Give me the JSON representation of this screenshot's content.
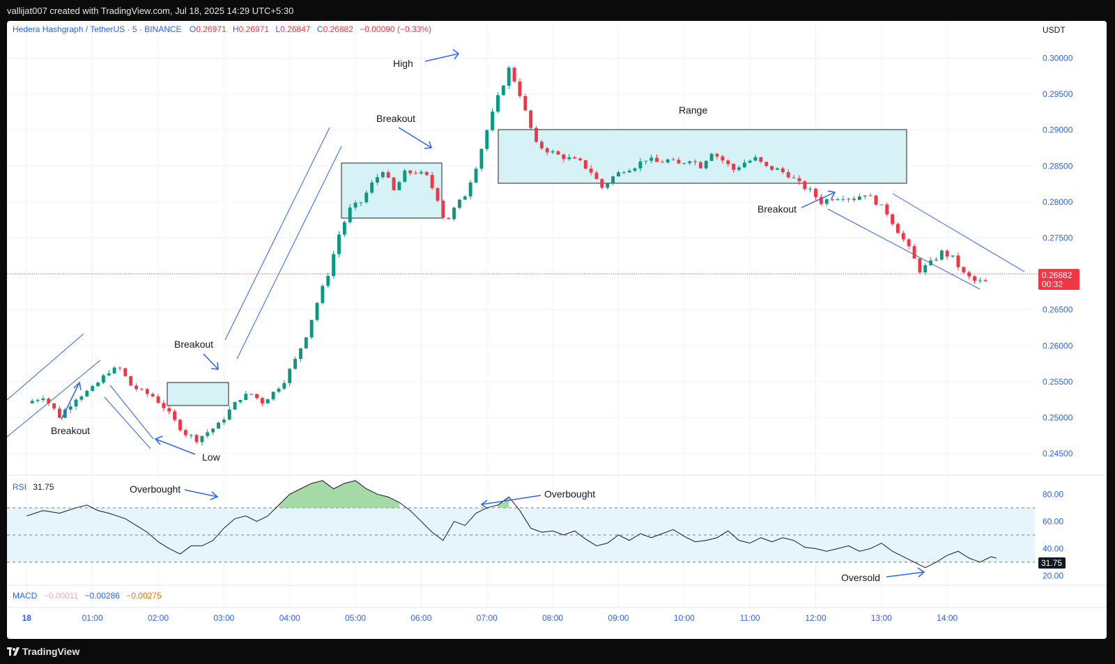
{
  "header": {
    "attribution": "vallijat007 created with TradingView.com, Jul 18, 2025 14:29 UTC+5:30"
  },
  "footer": {
    "logo_text": "TradingView"
  },
  "legend": {
    "symbol": "Hedera Hashgraph / TetherUS · 5 · BINANCE",
    "o_label": "O",
    "o": "0.26971",
    "h_label": "H",
    "h": "0.26971",
    "l_label": "L",
    "l": "0.26847",
    "c_label": "C",
    "c": "0.26882",
    "change": "−0.00090 (−0.33%)"
  },
  "currency": "USDT",
  "last_price": {
    "value": "0.26882",
    "countdown": "00:32"
  },
  "rsi": {
    "label": "RSI",
    "value": "31.75",
    "badge": "31.75",
    "ticks": [
      "80.00",
      "60.00",
      "40.00",
      "20.00"
    ]
  },
  "macd": {
    "label": "MACD",
    "v1": "−0.00011",
    "v2": "−0.00286",
    "v3": "−0.00275"
  },
  "annotations": {
    "breakout_1": "Breakout",
    "low": "Low",
    "breakout_2": "Breakout",
    "breakout_3": "Breakout",
    "high": "High",
    "range": "Range",
    "breakout_4": "Breakout",
    "overbought_1": "Overbought",
    "overbought_2": "Overbought",
    "oversold": "Oversold"
  },
  "colors": {
    "up": "#089981",
    "down": "#f23645",
    "annotation": "#2962ff",
    "box_fill": "#d6f2f7",
    "rsi_band": "#e6f5fb",
    "legend_text": "#2962ff",
    "ohlc_values": "#f23645"
  },
  "chart_data": {
    "type": "candlestick",
    "symbol": "Hedera Hashgraph / TetherUS",
    "interval": "5",
    "exchange": "BINANCE",
    "ylim": [
      0.242,
      0.3015
    ],
    "y_ticks": [
      "0.30000",
      "0.29500",
      "0.29000",
      "0.28500",
      "0.28000",
      "0.27500",
      "0.27000",
      "0.26500",
      "0.26000",
      "0.25500",
      "0.25000",
      "0.24500"
    ],
    "x_ticks": [
      "18",
      "01:00",
      "02:00",
      "03:00",
      "04:00",
      "05:00",
      "06:00",
      "07:00",
      "08:00",
      "09:00",
      "10:00",
      "11:00",
      "12:00",
      "13:00",
      "14:00"
    ],
    "x_range_minutes": [
      -18,
      920
    ],
    "close_path": [
      [
        0,
        0.252
      ],
      [
        15,
        0.253
      ],
      [
        30,
        0.2502
      ],
      [
        45,
        0.2528
      ],
      [
        60,
        0.254
      ],
      [
        75,
        0.2565
      ],
      [
        85,
        0.2568
      ],
      [
        95,
        0.2545
      ],
      [
        105,
        0.2536
      ],
      [
        115,
        0.253
      ],
      [
        125,
        0.2515
      ],
      [
        135,
        0.2495
      ],
      [
        145,
        0.2478
      ],
      [
        155,
        0.247
      ],
      [
        165,
        0.248
      ],
      [
        175,
        0.249
      ],
      [
        185,
        0.251
      ],
      [
        195,
        0.2528
      ],
      [
        205,
        0.2533
      ],
      [
        215,
        0.2522
      ],
      [
        225,
        0.2535
      ],
      [
        235,
        0.2552
      ],
      [
        245,
        0.258
      ],
      [
        255,
        0.2615
      ],
      [
        265,
        0.266
      ],
      [
        275,
        0.27
      ],
      [
        285,
        0.2755
      ],
      [
        295,
        0.279
      ],
      [
        305,
        0.28
      ],
      [
        315,
        0.2825
      ],
      [
        325,
        0.2845
      ],
      [
        335,
        0.2815
      ],
      [
        345,
        0.284
      ],
      [
        355,
        0.2842
      ],
      [
        365,
        0.2835
      ],
      [
        375,
        0.2805
      ],
      [
        382,
        0.277
      ],
      [
        390,
        0.279
      ],
      [
        400,
        0.281
      ],
      [
        410,
        0.285
      ],
      [
        420,
        0.29
      ],
      [
        430,
        0.2945
      ],
      [
        440,
        0.2985
      ],
      [
        448,
        0.296
      ],
      [
        456,
        0.292
      ],
      [
        465,
        0.288
      ],
      [
        475,
        0.2872
      ],
      [
        485,
        0.2865
      ],
      [
        495,
        0.286
      ],
      [
        505,
        0.2855
      ],
      [
        515,
        0.2842
      ],
      [
        525,
        0.282
      ],
      [
        535,
        0.2835
      ],
      [
        545,
        0.2845
      ],
      [
        555,
        0.285
      ],
      [
        565,
        0.286
      ],
      [
        575,
        0.2855
      ],
      [
        585,
        0.2858
      ],
      [
        595,
        0.2852
      ],
      [
        605,
        0.286
      ],
      [
        615,
        0.285
      ],
      [
        625,
        0.287
      ],
      [
        635,
        0.2858
      ],
      [
        645,
        0.2845
      ],
      [
        655,
        0.2855
      ],
      [
        665,
        0.286
      ],
      [
        675,
        0.2848
      ],
      [
        685,
        0.2845
      ],
      [
        695,
        0.2838
      ],
      [
        705,
        0.2825
      ],
      [
        715,
        0.2815
      ],
      [
        725,
        0.28
      ],
      [
        735,
        0.2806
      ],
      [
        745,
        0.2808
      ],
      [
        755,
        0.2805
      ],
      [
        765,
        0.2812
      ],
      [
        775,
        0.28
      ],
      [
        785,
        0.2785
      ],
      [
        795,
        0.276
      ],
      [
        805,
        0.2735
      ],
      [
        815,
        0.2705
      ],
      [
        825,
        0.2715
      ],
      [
        835,
        0.273
      ],
      [
        845,
        0.2722
      ],
      [
        855,
        0.27
      ],
      [
        865,
        0.269
      ],
      [
        875,
        0.2688
      ]
    ],
    "rsi": {
      "ylim": [
        13,
        94
      ],
      "bands": [
        70,
        50,
        30
      ],
      "points": [
        [
          0,
          64
        ],
        [
          15,
          68
        ],
        [
          30,
          66
        ],
        [
          45,
          70
        ],
        [
          55,
          72
        ],
        [
          65,
          68
        ],
        [
          75,
          66
        ],
        [
          90,
          62
        ],
        [
          100,
          57
        ],
        [
          110,
          52
        ],
        [
          120,
          45
        ],
        [
          130,
          40
        ],
        [
          140,
          36
        ],
        [
          150,
          42
        ],
        [
          160,
          42
        ],
        [
          170,
          46
        ],
        [
          180,
          55
        ],
        [
          190,
          62
        ],
        [
          200,
          64
        ],
        [
          210,
          60
        ],
        [
          220,
          64
        ],
        [
          230,
          72
        ],
        [
          240,
          80
        ],
        [
          250,
          84
        ],
        [
          260,
          88
        ],
        [
          270,
          90
        ],
        [
          280,
          84
        ],
        [
          290,
          88
        ],
        [
          300,
          90
        ],
        [
          310,
          84
        ],
        [
          320,
          80
        ],
        [
          330,
          78
        ],
        [
          340,
          74
        ],
        [
          350,
          68
        ],
        [
          360,
          60
        ],
        [
          370,
          52
        ],
        [
          380,
          46
        ],
        [
          390,
          60
        ],
        [
          400,
          57
        ],
        [
          410,
          66
        ],
        [
          420,
          70
        ],
        [
          430,
          72
        ],
        [
          440,
          78
        ],
        [
          450,
          68
        ],
        [
          460,
          55
        ],
        [
          470,
          52
        ],
        [
          480,
          53
        ],
        [
          490,
          50
        ],
        [
          500,
          53
        ],
        [
          510,
          47
        ],
        [
          520,
          42
        ],
        [
          530,
          44
        ],
        [
          540,
          50
        ],
        [
          550,
          46
        ],
        [
          560,
          51
        ],
        [
          570,
          48
        ],
        [
          580,
          51
        ],
        [
          590,
          54
        ],
        [
          600,
          49
        ],
        [
          610,
          45
        ],
        [
          620,
          46
        ],
        [
          630,
          48
        ],
        [
          640,
          53
        ],
        [
          650,
          46
        ],
        [
          660,
          44
        ],
        [
          670,
          48
        ],
        [
          680,
          45
        ],
        [
          690,
          48
        ],
        [
          700,
          46
        ],
        [
          710,
          41
        ],
        [
          720,
          40
        ],
        [
          730,
          38
        ],
        [
          740,
          40
        ],
        [
          750,
          42
        ],
        [
          760,
          38
        ],
        [
          770,
          40
        ],
        [
          780,
          44
        ],
        [
          790,
          38
        ],
        [
          800,
          34
        ],
        [
          810,
          30
        ],
        [
          820,
          26
        ],
        [
          830,
          30
        ],
        [
          840,
          35
        ],
        [
          850,
          38
        ],
        [
          860,
          33
        ],
        [
          870,
          30
        ],
        [
          880,
          34
        ],
        [
          885,
          33
        ]
      ]
    }
  }
}
